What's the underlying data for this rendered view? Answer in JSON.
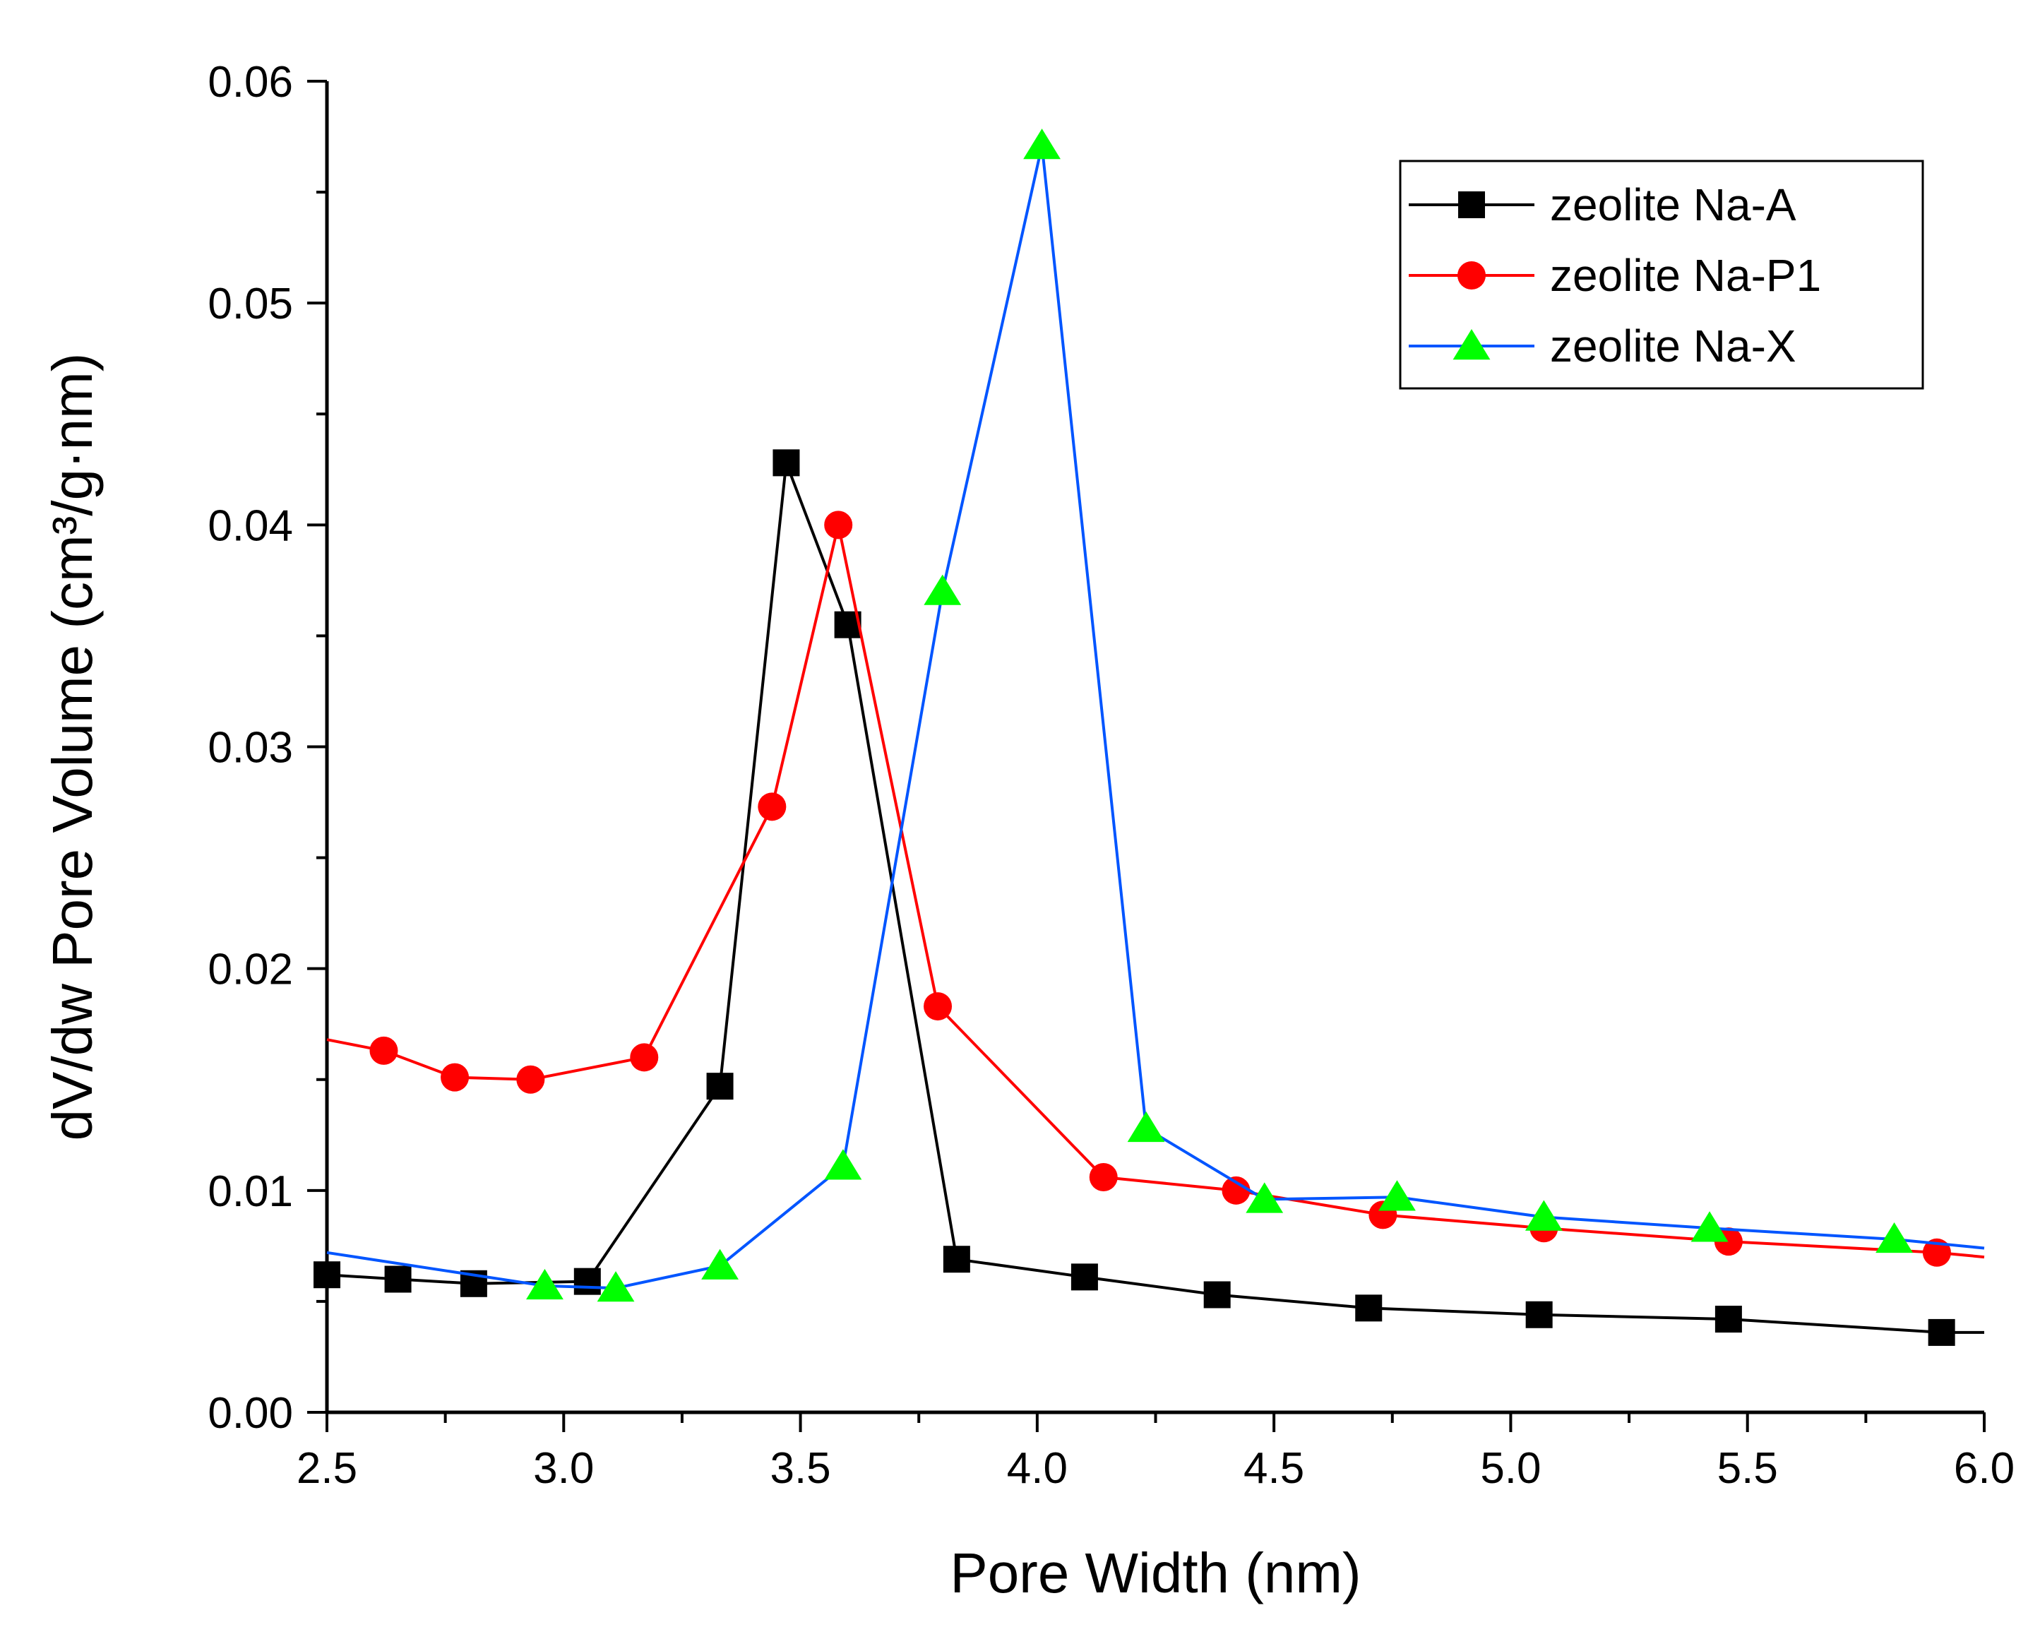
{
  "chart_data": {
    "type": "line",
    "xlabel": "Pore Width (nm)",
    "ylabel": "dV/dw Pore Volume (cm³/g·nm)",
    "xlim": [
      2.5,
      6.0
    ],
    "ylim": [
      0.0,
      0.06
    ],
    "x_ticks": [
      "2.5",
      "3.0",
      "3.5",
      "4.0",
      "4.5",
      "5.0",
      "5.5",
      "6.0"
    ],
    "y_ticks": [
      "0.00",
      "0.01",
      "0.02",
      "0.03",
      "0.04",
      "0.05",
      "0.06"
    ],
    "grid": false,
    "legend_position": "top-right",
    "series": [
      {
        "name": "zeolite Na-A",
        "color": "#000000",
        "marker": "square",
        "x": [
          2.5,
          2.65,
          2.81,
          3.05,
          3.33,
          3.47,
          3.6,
          3.83,
          4.1,
          4.38,
          4.7,
          5.06,
          5.46,
          5.91,
          6.0
        ],
        "y": [
          0.0062,
          0.006,
          0.0058,
          0.0059,
          0.0147,
          0.0428,
          0.0355,
          0.0069,
          0.0061,
          0.0053,
          0.0047,
          0.0044,
          0.0042,
          0.0036,
          0.0036
        ],
        "markers": [
          true,
          true,
          true,
          true,
          true,
          true,
          true,
          true,
          true,
          true,
          true,
          true,
          true,
          true,
          false
        ]
      },
      {
        "name": "zeolite Na-P1",
        "color": "#ff0000",
        "marker": "circle",
        "x": [
          2.5,
          2.62,
          2.77,
          2.93,
          3.17,
          3.44,
          3.58,
          3.79,
          4.14,
          4.42,
          4.73,
          5.07,
          5.46,
          5.9,
          6.0
        ],
        "y": [
          0.0168,
          0.0163,
          0.0151,
          0.015,
          0.016,
          0.0273,
          0.04,
          0.0183,
          0.0106,
          0.01,
          0.0089,
          0.0083,
          0.0077,
          0.0072,
          0.007
        ],
        "markers": [
          false,
          true,
          true,
          true,
          true,
          true,
          true,
          true,
          true,
          true,
          true,
          true,
          true,
          true,
          false
        ]
      },
      {
        "name": "zeolite Na-X",
        "color": "#0055ff",
        "marker": "triangle",
        "marker_color": "#00ff00",
        "x": [
          2.5,
          2.96,
          3.11,
          3.33,
          3.59,
          3.8,
          4.01,
          4.23,
          4.48,
          4.76,
          5.07,
          5.42,
          5.81,
          6.0
        ],
        "y": [
          0.0072,
          0.0057,
          0.0056,
          0.0066,
          0.0111,
          0.037,
          0.0571,
          0.0128,
          0.0096,
          0.0097,
          0.0088,
          0.0083,
          0.0078,
          0.0074
        ],
        "markers": [
          false,
          true,
          true,
          true,
          true,
          true,
          true,
          true,
          true,
          true,
          true,
          true,
          true,
          false
        ]
      }
    ]
  }
}
